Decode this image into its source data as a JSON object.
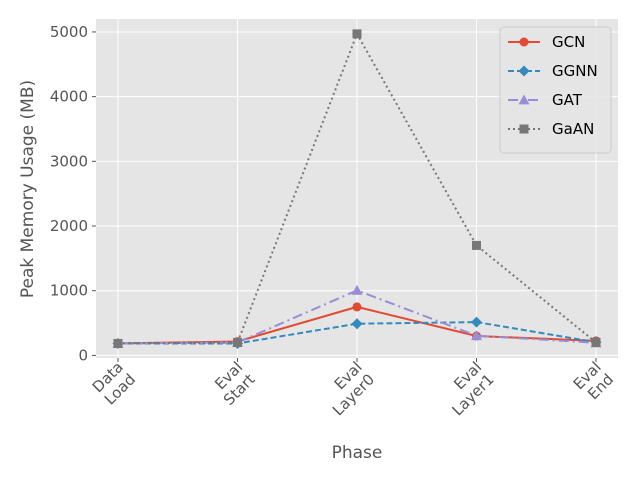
{
  "chart_data": {
    "type": "line",
    "title": "",
    "xlabel": "Phase",
    "ylabel": "Peak Memory Usage (MB)",
    "categories": [
      [
        "Data",
        "Load"
      ],
      [
        "Eval",
        "Start"
      ],
      [
        "Eval",
        "Layer0"
      ],
      [
        "Eval",
        "Layer1"
      ],
      [
        "Eval",
        "End"
      ]
    ],
    "ylim": [
      -40,
      5200
    ],
    "yticks": [
      0,
      1000,
      2000,
      3000,
      4000,
      5000
    ],
    "grid": true,
    "legend_position": "top-right",
    "series": [
      {
        "name": "GCN",
        "values": [
          185,
          215,
          750,
          300,
          225
        ],
        "color": "#e24a33",
        "marker": "circle",
        "dash": "solid"
      },
      {
        "name": "GGNN",
        "values": [
          185,
          185,
          490,
          515,
          205
        ],
        "color": "#348abd",
        "marker": "diamond",
        "dash": "dashed"
      },
      {
        "name": "GAT",
        "values": [
          185,
          200,
          1005,
          305,
          195
        ],
        "color": "#988ed5",
        "marker": "triangle",
        "dash": "dashdot"
      },
      {
        "name": "GaAN",
        "values": [
          185,
          200,
          4970,
          1700,
          200
        ],
        "color": "#777777",
        "marker": "square",
        "dash": "dotted"
      }
    ]
  }
}
